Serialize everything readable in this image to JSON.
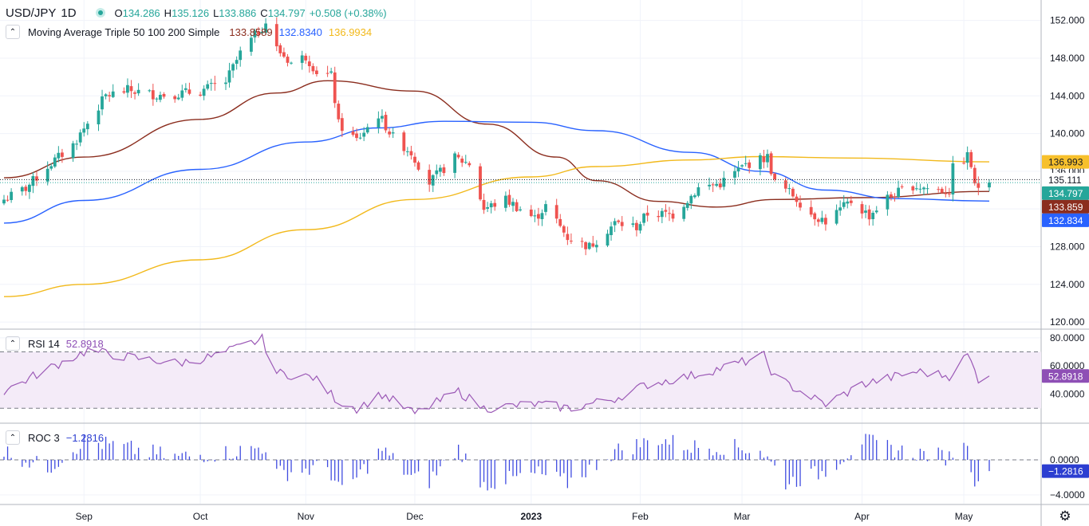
{
  "header": {
    "symbol": "USD/JPY",
    "interval": "1D",
    "ohlc": {
      "o_label": "O",
      "o": "134.286",
      "h_label": "H",
      "h": "135.126",
      "l_label": "L",
      "l": "133.886",
      "c_label": "C",
      "c": "134.797",
      "change": "+0.508 (+0.38%)"
    },
    "colors": {
      "up": "#26a69a",
      "down": "#ef5350",
      "text": "#131722"
    }
  },
  "ma_legend": {
    "title": "Moving Average Triple 50 100 200 Simple",
    "values": [
      "133.8589",
      "132.8340",
      "136.9934"
    ]
  },
  "rsi_legend": {
    "title": "RSI 14",
    "value": "52.8918"
  },
  "roc_legend": {
    "title": "ROC 3",
    "value": "−1.2816"
  },
  "price_badges": [
    {
      "text": "136.993",
      "value": 136.993,
      "bg": "#f7c02c",
      "fg": "#131722"
    },
    {
      "text": "135.111",
      "value": 135.111,
      "bg": "#ffffff",
      "fg": "#131722"
    },
    {
      "text": "134.797",
      "value": 134.797,
      "bg": "#26a69a",
      "fg": "#ffffff"
    },
    {
      "text": "133.859",
      "value": 133.859,
      "bg": "#8b2d1e",
      "fg": "#ffffff"
    },
    {
      "text": "132.834",
      "value": 132.834,
      "bg": "#2962ff",
      "fg": "#ffffff"
    }
  ],
  "rsi_badge": {
    "text": "52.8918",
    "bg": "#8e4fb5",
    "fg": "#ffffff"
  },
  "roc_badge": {
    "text": "−1.2816",
    "bg": "#2c3ed1",
    "fg": "#ffffff"
  },
  "x_axis": {
    "labels": [
      "Sep",
      "Oct",
      "Nov",
      "Dec",
      "2023",
      "Feb",
      "Mar",
      "Apr",
      "May"
    ],
    "bold_index": 4
  },
  "chart_data": {
    "type": "candlestick",
    "title": "USD/JPY 1D",
    "x_range": [
      "2022-08-10",
      "2023-05-08"
    ],
    "month_ticks": [
      {
        "label": "Sep",
        "date": "2022-09-01"
      },
      {
        "label": "Oct",
        "date": "2022-10-03"
      },
      {
        "label": "Nov",
        "date": "2022-11-01"
      },
      {
        "label": "Dec",
        "date": "2022-12-01"
      },
      {
        "label": "2023",
        "date": "2023-01-02"
      },
      {
        "label": "Feb",
        "date": "2023-02-01"
      },
      {
        "label": "Mar",
        "date": "2023-03-01"
      },
      {
        "label": "Apr",
        "date": "2023-04-03"
      },
      {
        "label": "May",
        "date": "2023-05-01"
      }
    ],
    "price_axis": {
      "ylim": [
        119.5,
        154
      ],
      "ticks": [
        120,
        124,
        128,
        132,
        136,
        140,
        144,
        148,
        152
      ],
      "tick_labels": [
        "120.000",
        "124.000",
        "128.000",
        "132.000",
        "136.000",
        "140.000",
        "144.000",
        "148.000",
        "152.000"
      ]
    },
    "close_points": [
      [
        "2022-08-10",
        133.0
      ],
      [
        "2022-08-16",
        134.2
      ],
      [
        "2022-08-22",
        136.5
      ],
      [
        "2022-08-29",
        138.8
      ],
      [
        "2022-09-07",
        144.0
      ],
      [
        "2022-09-13",
        144.6
      ],
      [
        "2022-09-21",
        144.1
      ],
      [
        "2022-09-26",
        144.2
      ],
      [
        "2022-10-03",
        144.5
      ],
      [
        "2022-10-10",
        145.5
      ],
      [
        "2022-10-14",
        148.5
      ],
      [
        "2022-10-21",
        151.8
      ],
      [
        "2022-10-24",
        149.0
      ],
      [
        "2022-10-28",
        147.5
      ],
      [
        "2022-11-01",
        148.2
      ],
      [
        "2022-11-04",
        146.6
      ],
      [
        "2022-11-08",
        146.1
      ],
      [
        "2022-11-10",
        141.0
      ],
      [
        "2022-11-15",
        139.3
      ],
      [
        "2022-11-21",
        142.0
      ],
      [
        "2022-11-25",
        139.6
      ],
      [
        "2022-11-30",
        138.0
      ],
      [
        "2022-12-05",
        134.8
      ],
      [
        "2022-12-12",
        137.4
      ],
      [
        "2022-12-16",
        136.8
      ],
      [
        "2022-12-20",
        132.0
      ],
      [
        "2022-12-26",
        133.0
      ],
      [
        "2023-01-03",
        131.0
      ],
      [
        "2023-01-06",
        132.3
      ],
      [
        "2023-01-12",
        129.0
      ],
      [
        "2023-01-18",
        128.0
      ],
      [
        "2023-01-25",
        130.5
      ],
      [
        "2023-01-31",
        130.1
      ],
      [
        "2023-02-03",
        131.5
      ],
      [
        "2023-02-10",
        131.4
      ],
      [
        "2023-02-17",
        134.2
      ],
      [
        "2023-02-23",
        134.7
      ],
      [
        "2023-03-02",
        136.7
      ],
      [
        "2023-03-08",
        137.5
      ],
      [
        "2023-03-10",
        134.8
      ],
      [
        "2023-03-15",
        133.5
      ],
      [
        "2023-03-20",
        131.5
      ],
      [
        "2023-03-24",
        130.7
      ],
      [
        "2023-03-31",
        132.8
      ],
      [
        "2023-04-05",
        131.3
      ],
      [
        "2023-04-10",
        133.2
      ],
      [
        "2023-04-17",
        134.5
      ],
      [
        "2023-04-21",
        134.2
      ],
      [
        "2023-04-27",
        133.9
      ],
      [
        "2023-04-28",
        136.3
      ],
      [
        "2023-05-02",
        137.6
      ],
      [
        "2023-05-03",
        136.6
      ],
      [
        "2023-05-04",
        134.3
      ],
      [
        "2023-05-08",
        134.797
      ]
    ],
    "ma_series": [
      {
        "label": "50",
        "color": "#8b2d1e",
        "points": [
          [
            "2022-08-10",
            135.3
          ],
          [
            "2022-09-01",
            137.5
          ],
          [
            "2022-10-03",
            141.5
          ],
          [
            "2022-10-24",
            144.3
          ],
          [
            "2022-11-07",
            145.6
          ],
          [
            "2022-12-01",
            144.5
          ],
          [
            "2022-12-21",
            141.0
          ],
          [
            "2023-01-09",
            137.5
          ],
          [
            "2023-01-20",
            135.0
          ],
          [
            "2023-02-06",
            132.8
          ],
          [
            "2023-02-22",
            132.2
          ],
          [
            "2023-03-10",
            133.0
          ],
          [
            "2023-04-03",
            133.2
          ],
          [
            "2023-05-08",
            133.8589
          ]
        ]
      },
      {
        "label": "100",
        "color": "#2962ff",
        "points": [
          [
            "2022-08-10",
            130.5
          ],
          [
            "2022-09-01",
            132.9
          ],
          [
            "2022-10-03",
            136.2
          ],
          [
            "2022-11-01",
            139.1
          ],
          [
            "2022-11-21",
            140.6
          ],
          [
            "2022-12-09",
            141.3
          ],
          [
            "2023-01-02",
            141.2
          ],
          [
            "2023-01-20",
            140.3
          ],
          [
            "2023-02-15",
            138.0
          ],
          [
            "2023-03-06",
            136.0
          ],
          [
            "2023-03-24",
            134.0
          ],
          [
            "2023-04-12",
            133.1
          ],
          [
            "2023-05-08",
            132.834
          ]
        ]
      },
      {
        "label": "200",
        "color": "#f2b91b",
        "points": [
          [
            "2022-08-10",
            122.7
          ],
          [
            "2022-09-01",
            124.0
          ],
          [
            "2022-10-03",
            126.6
          ],
          [
            "2022-11-01",
            129.8
          ],
          [
            "2022-12-01",
            133.0
          ],
          [
            "2023-01-02",
            135.4
          ],
          [
            "2023-01-20",
            136.5
          ],
          [
            "2023-02-15",
            137.2
          ],
          [
            "2023-03-06",
            137.55
          ],
          [
            "2023-03-31",
            137.4
          ],
          [
            "2023-05-08",
            136.9934
          ]
        ]
      }
    ],
    "rsi": {
      "ylim": [
        20,
        85
      ],
      "ticks": [
        40,
        60,
        80
      ],
      "tick_labels": [
        "40.0000",
        "60.0000",
        "80.0000"
      ],
      "bands": [
        30,
        70
      ],
      "color": "#9b59b6",
      "points": [
        [
          "2022-08-10",
          42
        ],
        [
          "2022-08-22",
          58
        ],
        [
          "2022-09-02",
          71
        ],
        [
          "2022-09-14",
          66
        ],
        [
          "2022-09-27",
          62
        ],
        [
          "2022-10-07",
          67
        ],
        [
          "2022-10-20",
          79
        ],
        [
          "2022-10-24",
          55
        ],
        [
          "2022-11-03",
          52
        ],
        [
          "2022-11-10",
          35
        ],
        [
          "2022-11-15",
          30
        ],
        [
          "2022-11-22",
          40
        ],
        [
          "2022-12-01",
          26
        ],
        [
          "2022-12-13",
          42
        ],
        [
          "2022-12-20",
          30
        ],
        [
          "2023-01-03",
          33
        ],
        [
          "2023-01-13",
          30
        ],
        [
          "2023-01-25",
          37
        ],
        [
          "2023-02-03",
          47
        ],
        [
          "2023-02-15",
          53
        ],
        [
          "2023-02-24",
          59
        ],
        [
          "2023-03-07",
          67
        ],
        [
          "2023-03-10",
          52
        ],
        [
          "2023-03-20",
          38
        ],
        [
          "2023-03-24",
          33
        ],
        [
          "2023-04-03",
          47
        ],
        [
          "2023-04-18",
          56
        ],
        [
          "2023-04-27",
          53
        ],
        [
          "2023-05-02",
          68
        ],
        [
          "2023-05-05",
          51
        ],
        [
          "2023-05-08",
          52.8918
        ]
      ]
    },
    "roc": {
      "ylim": [
        -5,
        4
      ],
      "ticks": [
        -4,
        0
      ],
      "tick_labels": [
        "−4.0000",
        "0.0000"
      ],
      "color": "#3f4be0",
      "points": [
        [
          "2022-08-10",
          1.0
        ],
        [
          "2022-08-22",
          -1.0
        ],
        [
          "2022-09-01",
          2.2
        ],
        [
          "2022-09-12",
          1.4
        ],
        [
          "2022-09-26",
          0.3
        ],
        [
          "2022-10-10",
          0.8
        ],
        [
          "2022-10-21",
          1.5
        ],
        [
          "2022-10-24",
          -1.6
        ],
        [
          "2022-11-07",
          -0.8
        ],
        [
          "2022-11-11",
          -3.8
        ],
        [
          "2022-11-22",
          1.2
        ],
        [
          "2022-11-30",
          -2.0
        ],
        [
          "2022-12-05",
          -2.4
        ],
        [
          "2022-12-13",
          1.3
        ],
        [
          "2022-12-20",
          -2.8
        ],
        [
          "2023-01-04",
          -1.6
        ],
        [
          "2023-01-12",
          -2.6
        ],
        [
          "2023-01-25",
          1.0
        ],
        [
          "2023-02-06",
          2.4
        ],
        [
          "2023-02-15",
          1.5
        ],
        [
          "2023-02-24",
          1.5
        ],
        [
          "2023-03-06",
          1.2
        ],
        [
          "2023-03-13",
          -2.6
        ],
        [
          "2023-03-24",
          -1.3
        ],
        [
          "2023-04-03",
          2.2
        ],
        [
          "2023-04-14",
          1.0
        ],
        [
          "2023-04-27",
          0.3
        ],
        [
          "2023-05-01",
          2.6
        ],
        [
          "2023-05-04",
          -2.1
        ],
        [
          "2023-05-08",
          -1.2816
        ]
      ]
    }
  }
}
